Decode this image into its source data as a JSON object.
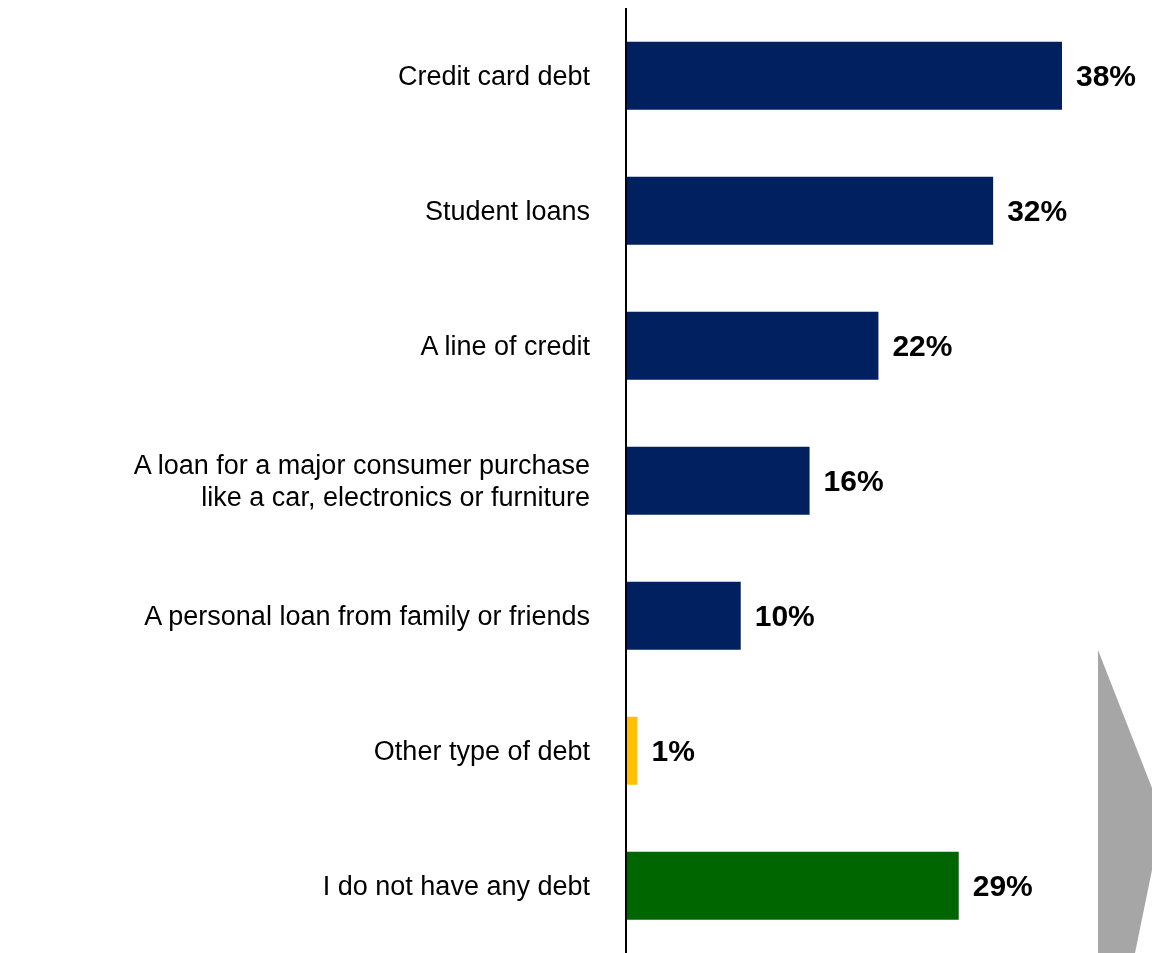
{
  "chart_data": {
    "type": "bar",
    "orientation": "horizontal",
    "categories": [
      "Credit card debt",
      "Student loans",
      "A line of credit",
      "A loan for a major consumer purchase like a car, electronics or furniture",
      "A personal loan from family or friends",
      "Other type of debt",
      "I do not have any debt"
    ],
    "values": [
      38,
      32,
      22,
      16,
      10,
      1,
      29
    ],
    "colors": [
      "#002060",
      "#002060",
      "#002060",
      "#002060",
      "#002060",
      "#ffc000",
      "#006600"
    ],
    "value_labels": [
      "38%",
      "32%",
      "22%",
      "16%",
      "10%",
      "1%",
      "29%"
    ]
  }
}
